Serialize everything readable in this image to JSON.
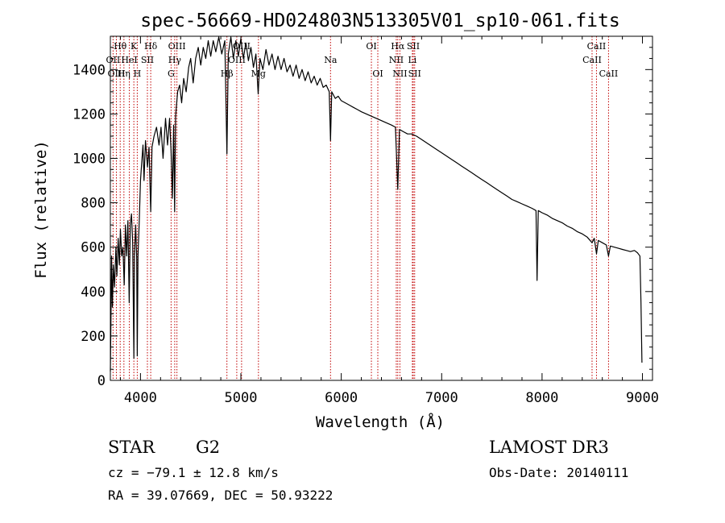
{
  "chart_data": {
    "type": "line",
    "title": "spec-56669-HD024803N513305V01_sp10-061.fits",
    "xlabel": "Wavelength (Å)",
    "ylabel": "Flux (relative)",
    "xlim": [
      3700,
      9100
    ],
    "ylim": [
      0,
      1550
    ],
    "xticks": [
      4000,
      5000,
      6000,
      7000,
      8000,
      9000
    ],
    "yticks": [
      0,
      200,
      400,
      600,
      800,
      1000,
      1200,
      1400
    ],
    "grid": false,
    "series": [
      {
        "name": "flux",
        "points": [
          [
            3700,
            40
          ],
          [
            3705,
            230
          ],
          [
            3712,
            560
          ],
          [
            3720,
            330
          ],
          [
            3730,
            520
          ],
          [
            3742,
            420
          ],
          [
            3755,
            600
          ],
          [
            3765,
            470
          ],
          [
            3778,
            640
          ],
          [
            3790,
            520
          ],
          [
            3800,
            680
          ],
          [
            3812,
            560
          ],
          [
            3825,
            600
          ],
          [
            3838,
            430
          ],
          [
            3850,
            700
          ],
          [
            3862,
            560
          ],
          [
            3875,
            720
          ],
          [
            3888,
            350
          ],
          [
            3898,
            700
          ],
          [
            3910,
            750
          ],
          [
            3922,
            620
          ],
          [
            3934,
            100
          ],
          [
            3940,
            560
          ],
          [
            3952,
            700
          ],
          [
            3962,
            550
          ],
          [
            3968,
            110
          ],
          [
            3975,
            560
          ],
          [
            3988,
            720
          ],
          [
            4000,
            900
          ],
          [
            4012,
            980
          ],
          [
            4025,
            1060
          ],
          [
            4035,
            900
          ],
          [
            4050,
            1080
          ],
          [
            4070,
            960
          ],
          [
            4085,
            1050
          ],
          [
            4102,
            760
          ],
          [
            4115,
            1050
          ],
          [
            4135,
            1100
          ],
          [
            4160,
            1140
          ],
          [
            4185,
            1060
          ],
          [
            4205,
            1140
          ],
          [
            4225,
            1000
          ],
          [
            4250,
            1180
          ],
          [
            4270,
            1060
          ],
          [
            4290,
            1180
          ],
          [
            4305,
            1030
          ],
          [
            4318,
            820
          ],
          [
            4330,
            1150
          ],
          [
            4340,
            760
          ],
          [
            4350,
            1190
          ],
          [
            4370,
            1300
          ],
          [
            4390,
            1330
          ],
          [
            4410,
            1250
          ],
          [
            4430,
            1360
          ],
          [
            4455,
            1300
          ],
          [
            4480,
            1410
          ],
          [
            4500,
            1450
          ],
          [
            4525,
            1340
          ],
          [
            4550,
            1450
          ],
          [
            4575,
            1500
          ],
          [
            4600,
            1420
          ],
          [
            4625,
            1500
          ],
          [
            4650,
            1450
          ],
          [
            4675,
            1530
          ],
          [
            4700,
            1460
          ],
          [
            4725,
            1530
          ],
          [
            4750,
            1480
          ],
          [
            4780,
            1550
          ],
          [
            4810,
            1470
          ],
          [
            4840,
            1530
          ],
          [
            4861,
            1020
          ],
          [
            4875,
            1470
          ],
          [
            4900,
            1550
          ],
          [
            4925,
            1450
          ],
          [
            4950,
            1530
          ],
          [
            4975,
            1460
          ],
          [
            5000,
            1540
          ],
          [
            5025,
            1450
          ],
          [
            5050,
            1520
          ],
          [
            5075,
            1440
          ],
          [
            5100,
            1500
          ],
          [
            5125,
            1410
          ],
          [
            5150,
            1470
          ],
          [
            5172,
            1290
          ],
          [
            5190,
            1450
          ],
          [
            5220,
            1400
          ],
          [
            5250,
            1490
          ],
          [
            5280,
            1420
          ],
          [
            5310,
            1470
          ],
          [
            5340,
            1400
          ],
          [
            5370,
            1460
          ],
          [
            5400,
            1400
          ],
          [
            5430,
            1450
          ],
          [
            5460,
            1390
          ],
          [
            5490,
            1420
          ],
          [
            5520,
            1370
          ],
          [
            5550,
            1420
          ],
          [
            5580,
            1360
          ],
          [
            5610,
            1400
          ],
          [
            5640,
            1350
          ],
          [
            5670,
            1390
          ],
          [
            5700,
            1340
          ],
          [
            5730,
            1370
          ],
          [
            5760,
            1330
          ],
          [
            5790,
            1360
          ],
          [
            5820,
            1320
          ],
          [
            5850,
            1330
          ],
          [
            5880,
            1300
          ],
          [
            5893,
            1080
          ],
          [
            5905,
            1300
          ],
          [
            5940,
            1270
          ],
          [
            5970,
            1280
          ],
          [
            6000,
            1260
          ],
          [
            6040,
            1250
          ],
          [
            6080,
            1240
          ],
          [
            6120,
            1230
          ],
          [
            6160,
            1220
          ],
          [
            6200,
            1210
          ],
          [
            6250,
            1200
          ],
          [
            6300,
            1190
          ],
          [
            6350,
            1180
          ],
          [
            6400,
            1170
          ],
          [
            6450,
            1160
          ],
          [
            6500,
            1150
          ],
          [
            6540,
            1140
          ],
          [
            6563,
            860
          ],
          [
            6580,
            1130
          ],
          [
            6620,
            1120
          ],
          [
            6660,
            1110
          ],
          [
            6700,
            1110
          ],
          [
            6750,
            1100
          ],
          [
            6800,
            1085
          ],
          [
            6850,
            1070
          ],
          [
            6900,
            1055
          ],
          [
            6950,
            1040
          ],
          [
            7000,
            1025
          ],
          [
            7050,
            1010
          ],
          [
            7100,
            995
          ],
          [
            7150,
            980
          ],
          [
            7200,
            965
          ],
          [
            7250,
            950
          ],
          [
            7300,
            935
          ],
          [
            7350,
            920
          ],
          [
            7400,
            905
          ],
          [
            7450,
            890
          ],
          [
            7500,
            875
          ],
          [
            7550,
            860
          ],
          [
            7600,
            845
          ],
          [
            7650,
            830
          ],
          [
            7700,
            815
          ],
          [
            7750,
            805
          ],
          [
            7800,
            795
          ],
          [
            7850,
            785
          ],
          [
            7900,
            775
          ],
          [
            7940,
            765
          ],
          [
            7950,
            450
          ],
          [
            7962,
            765
          ],
          [
            8000,
            755
          ],
          [
            8050,
            745
          ],
          [
            8100,
            730
          ],
          [
            8150,
            720
          ],
          [
            8200,
            710
          ],
          [
            8250,
            695
          ],
          [
            8300,
            685
          ],
          [
            8350,
            670
          ],
          [
            8400,
            660
          ],
          [
            8450,
            645
          ],
          [
            8498,
            620
          ],
          [
            8520,
            640
          ],
          [
            8542,
            570
          ],
          [
            8560,
            630
          ],
          [
            8600,
            620
          ],
          [
            8640,
            610
          ],
          [
            8662,
            560
          ],
          [
            8680,
            605
          ],
          [
            8720,
            600
          ],
          [
            8760,
            595
          ],
          [
            8800,
            590
          ],
          [
            8840,
            585
          ],
          [
            8880,
            580
          ],
          [
            8920,
            585
          ],
          [
            8950,
            575
          ],
          [
            8975,
            560
          ],
          [
            8985,
            350
          ],
          [
            8995,
            80
          ]
        ]
      }
    ],
    "line_labels": [
      {
        "label": "Hθ",
        "x": 3798,
        "row": 1
      },
      {
        "label": "OII",
        "x": 3727,
        "row": 2
      },
      {
        "label": "OIII",
        "x": 3760,
        "row": 3
      },
      {
        "label": "K",
        "x": 3934,
        "row": 1
      },
      {
        "label": "HeI",
        "x": 3889,
        "row": 2
      },
      {
        "label": "Hη",
        "x": 3835,
        "row": 3
      },
      {
        "label": "Hδ",
        "x": 4102,
        "row": 1
      },
      {
        "label": "SII",
        "x": 4069,
        "row": 2
      },
      {
        "label": "H",
        "x": 3968,
        "row": 3
      },
      {
        "label": "OIII",
        "x": 4363,
        "row": 1
      },
      {
        "label": "Hγ",
        "x": 4341,
        "row": 2
      },
      {
        "label": "G",
        "x": 4305,
        "row": 3
      },
      {
        "label": "OIII",
        "x": 5007,
        "row": 1
      },
      {
        "label": "OIII",
        "x": 4959,
        "row": 2
      },
      {
        "label": "Hβ",
        "x": 4861,
        "row": 3
      },
      {
        "label": "Mg",
        "x": 5175,
        "row": 3
      },
      {
        "label": "Na",
        "x": 5893,
        "row": 2
      },
      {
        "label": "OI",
        "x": 6300,
        "row": 1
      },
      {
        "label": "OI",
        "x": 6364,
        "row": 3
      },
      {
        "label": "Hα",
        "x": 6563,
        "row": 1
      },
      {
        "label": "NII",
        "x": 6548,
        "row": 2
      },
      {
        "label": "NII",
        "x": 6584,
        "row": 3
      },
      {
        "label": "SII",
        "x": 6717,
        "row": 1
      },
      {
        "label": "Li",
        "x": 6708,
        "row": 2
      },
      {
        "label": "SII",
        "x": 6731,
        "row": 3
      },
      {
        "label": "CaII",
        "x": 8542,
        "row": 1
      },
      {
        "label": "CaII",
        "x": 8498,
        "row": 2
      },
      {
        "label": "CaII",
        "x": 8662,
        "row": 3
      }
    ]
  },
  "info": {
    "object_class": "STAR",
    "subclass": "G2",
    "survey": "LAMOST DR3",
    "velocity": "cz = −79.1 ± 12.8 km/s",
    "obs_date": "Obs-Date: 20140111",
    "coords": "RA =  39.07669, DEC =  50.93222"
  }
}
